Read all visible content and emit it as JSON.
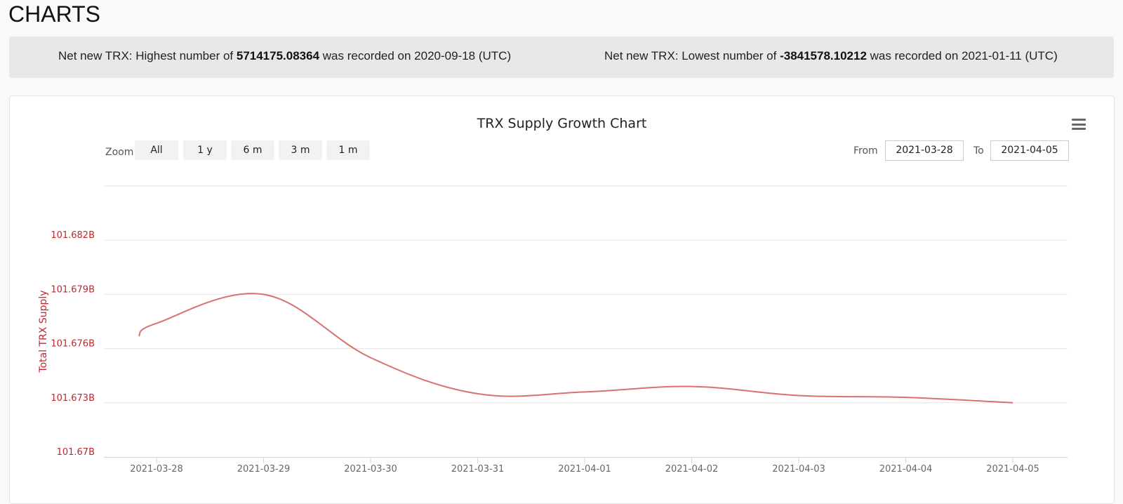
{
  "page": {
    "title": "CHARTS"
  },
  "stats": {
    "high": {
      "prefix": "Net new TRX: Highest number of ",
      "value": "5714175.08364",
      "suffix": " was recorded on 2020-09-18 (UTC)"
    },
    "low": {
      "prefix": "Net new TRX: Lowest number of ",
      "value": "-3841578.10212",
      "suffix": " was recorded on 2021-01-11 (UTC)"
    }
  },
  "controls": {
    "zoom_label": "Zoom",
    "zoom_buttons": [
      "All",
      "1 y",
      "6 m",
      "3 m",
      "1 m"
    ],
    "from_label": "From",
    "from_value": "2021-03-28",
    "to_label": "To",
    "to_value": "2021-04-05",
    "menu_icon": "hamburger-menu-icon"
  },
  "chart_data": {
    "type": "line",
    "title": "TRX Supply Growth Chart",
    "xlabel": "",
    "ylabel": "Total TRX Supply",
    "line_color": "#d9716f",
    "tick_color": "#c0282f",
    "grid": true,
    "x_ticks": [
      "2021-03-28",
      "2021-03-29",
      "2021-03-30",
      "2021-03-31",
      "2021-04-01",
      "2021-04-02",
      "2021-04-03",
      "2021-04-04",
      "2021-04-05"
    ],
    "y_ticks": [
      {
        "value": 101.67,
        "label": "101.67B"
      },
      {
        "value": 101.673,
        "label": "101.673B"
      },
      {
        "value": 101.676,
        "label": "101.676B"
      },
      {
        "value": 101.679,
        "label": "101.679B"
      },
      {
        "value": 101.682,
        "label": "101.682B"
      }
    ],
    "ylim": [
      101.67,
      101.685
    ],
    "y_unit": "B",
    "series": [
      {
        "x": [
          "2021-03-27 20:00",
          "2021-03-28",
          "2021-03-29",
          "2021-03-30",
          "2021-03-31",
          "2021-04-01",
          "2021-04-02",
          "2021-04-03",
          "2021-04-04",
          "2021-04-05"
        ],
        "values": [
          101.6767,
          101.6774,
          101.679,
          101.6755,
          101.6735,
          101.6736,
          101.6739,
          101.6734,
          101.6733,
          101.673
        ]
      }
    ]
  }
}
